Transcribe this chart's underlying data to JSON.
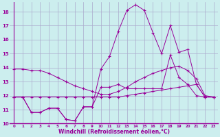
{
  "xlabel": "Windchill (Refroidissement éolien,°C)",
  "x_values": [
    0,
    1,
    2,
    3,
    4,
    5,
    6,
    7,
    8,
    9,
    10,
    11,
    12,
    13,
    14,
    15,
    16,
    17,
    18,
    19,
    20,
    21,
    22,
    23
  ],
  "line1": [
    13.9,
    13.9,
    13.8,
    13.8,
    13.6,
    13.3,
    13.0,
    12.7,
    12.5,
    12.3,
    12.1,
    12.1,
    12.3,
    12.6,
    13.0,
    13.3,
    13.6,
    13.8,
    14.0,
    14.1,
    13.8,
    13.2,
    12.0,
    11.9
  ],
  "line2": [
    11.9,
    11.9,
    11.9,
    11.9,
    11.9,
    11.9,
    11.9,
    11.9,
    11.9,
    11.9,
    11.9,
    11.9,
    11.9,
    12.0,
    12.1,
    12.2,
    12.3,
    12.4,
    12.5,
    12.6,
    12.7,
    12.8,
    11.9,
    11.9
  ],
  "line3": [
    11.9,
    11.9,
    10.8,
    10.8,
    11.1,
    11.1,
    10.3,
    10.2,
    11.2,
    11.2,
    12.6,
    12.6,
    12.8,
    12.5,
    12.5,
    12.5,
    12.5,
    12.5,
    14.9,
    13.3,
    12.8,
    12.0,
    11.9,
    11.9
  ],
  "line4": [
    11.9,
    11.9,
    10.8,
    10.8,
    11.1,
    11.1,
    10.3,
    10.2,
    11.2,
    11.2,
    13.9,
    14.8,
    16.6,
    18.1,
    18.5,
    18.1,
    16.5,
    15.0,
    17.0,
    15.1,
    15.3,
    12.8,
    11.9,
    11.9
  ],
  "color": "#990099",
  "bg_color": "#cceeee",
  "grid_color": "#aaaacc",
  "ylim": [
    10,
    18.7
  ],
  "yticks": [
    10,
    11,
    12,
    13,
    14,
    15,
    16,
    17,
    18
  ],
  "xlim": [
    -0.5,
    23.5
  ]
}
